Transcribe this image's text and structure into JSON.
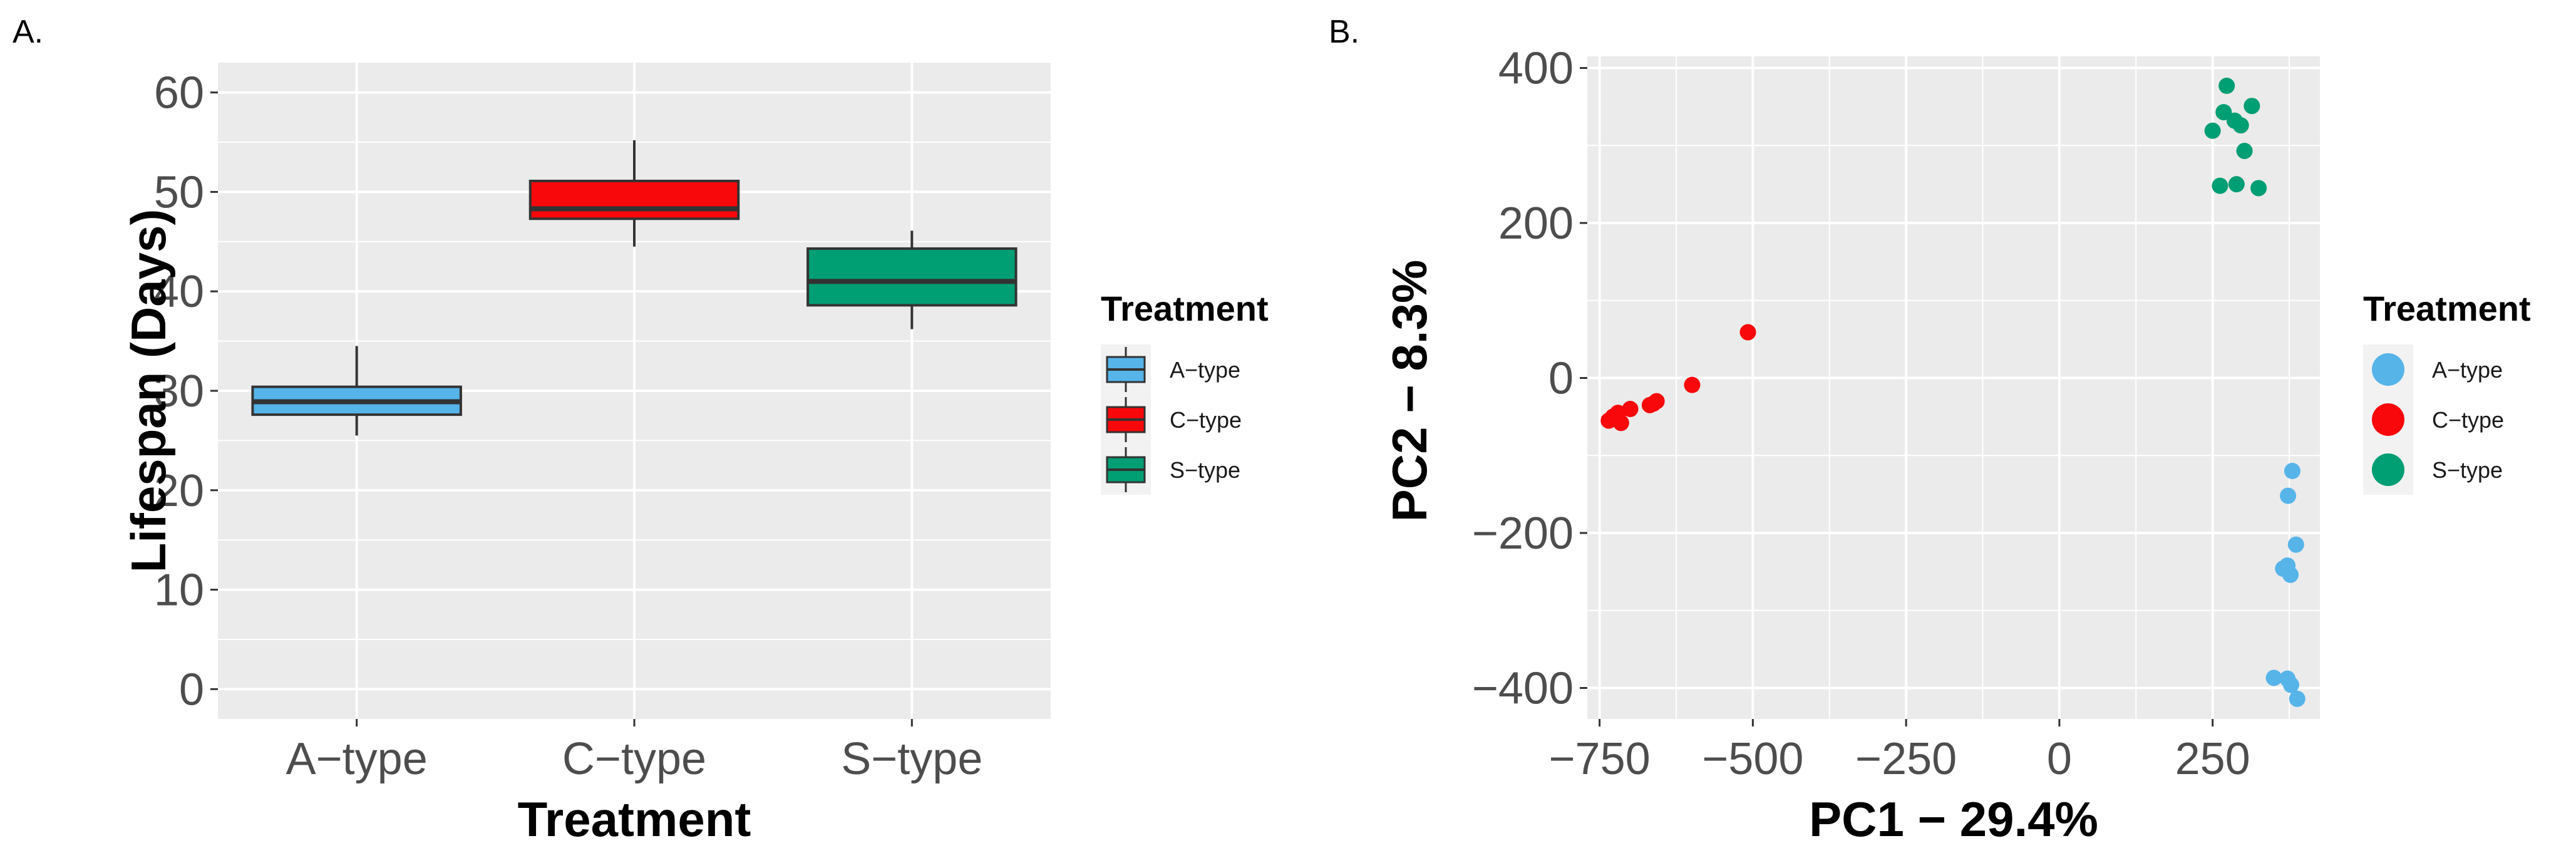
{
  "chart_data": [
    {
      "panel": "A.",
      "type": "boxplot",
      "xlabel": "Treatment",
      "ylabel": "Lifespan (Days)",
      "ylim": [
        -3,
        63
      ],
      "yticks": [
        "0",
        "10",
        "20",
        "30",
        "40",
        "50",
        "60"
      ],
      "categories": [
        "A−type",
        "C−type",
        "S−type"
      ],
      "boxes": [
        {
          "name": "A−type",
          "min": 25.5,
          "q1": 27.6,
          "median": 28.9,
          "q3": 30.4,
          "max": 34.5,
          "color": "#56B4E9"
        },
        {
          "name": "C−type",
          "min": 44.5,
          "q1": 47.3,
          "median": 48.3,
          "q3": 51.1,
          "max": 55.2,
          "color": "#F8070B"
        },
        {
          "name": "S−type",
          "min": 36.2,
          "q1": 38.6,
          "median": 41.0,
          "q3": 44.3,
          "max": 46.1,
          "color": "#009E73"
        }
      ],
      "legend": {
        "title": "Treatment",
        "items": [
          "A−type",
          "C−type",
          "S−type"
        ]
      }
    },
    {
      "panel": "B.",
      "type": "scatter",
      "xlabel": "PC1 − 29.4%",
      "ylabel": "PC2 − 8.3%",
      "xlim": [
        -770,
        425
      ],
      "ylim": [
        -440,
        415
      ],
      "xticks": [
        "−750",
        "−500",
        "−250",
        "0",
        "250"
      ],
      "yticks": [
        "−400",
        "−200",
        "0",
        "200",
        "400"
      ],
      "series": [
        {
          "name": "A−type",
          "color": "#56B4E9",
          "points": [
            [
              380,
              -120
            ],
            [
              373,
              -152
            ],
            [
              386,
              -215
            ],
            [
              365,
              -246
            ],
            [
              372,
              -242
            ],
            [
              377,
              -254
            ],
            [
              350,
              -387
            ],
            [
              372,
              -388
            ],
            [
              378,
              -396
            ],
            [
              388,
              -414
            ]
          ]
        },
        {
          "name": "C−type",
          "color": "#F8070B",
          "points": [
            [
              -508,
              59
            ],
            [
              -599,
              -9
            ],
            [
              -657,
              -30
            ],
            [
              -662,
              -33
            ],
            [
              -668,
              -35
            ],
            [
              -700,
              -40
            ],
            [
              -720,
              -45
            ],
            [
              -728,
              -50
            ],
            [
              -735,
              -55
            ],
            [
              -715,
              -58
            ]
          ]
        },
        {
          "name": "S−type",
          "color": "#009E73",
          "points": [
            [
              273,
              377
            ],
            [
              314,
              351
            ],
            [
              268,
              343
            ],
            [
              286,
              332
            ],
            [
              296,
              326
            ],
            [
              250,
              319
            ],
            [
              302,
              293
            ],
            [
              262,
              248
            ],
            [
              289,
              250
            ],
            [
              325,
              245
            ]
          ]
        }
      ],
      "legend": {
        "title": "Treatment",
        "items": [
          "A−type",
          "C−type",
          "S−type"
        ]
      }
    }
  ]
}
